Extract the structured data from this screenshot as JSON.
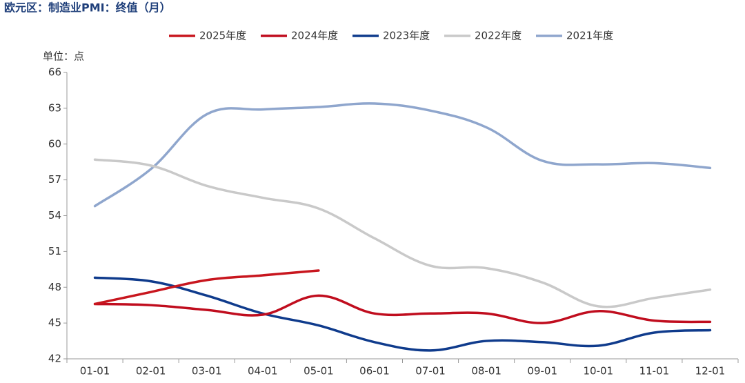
{
  "chart_data": {
    "type": "line",
    "title": "欧元区：制造业PMI：终值（月）",
    "y_axis_label": "单位：点",
    "categories": [
      "01-01",
      "02-01",
      "03-01",
      "04-01",
      "05-01",
      "06-01",
      "07-01",
      "08-01",
      "09-01",
      "10-01",
      "11-01",
      "12-01"
    ],
    "series": [
      {
        "name": "2025年度",
        "color": "#c8161e",
        "values": [
          46.6,
          47.6,
          48.6,
          49.0,
          49.4,
          null,
          null,
          null,
          null,
          null,
          null,
          null
        ]
      },
      {
        "name": "2024年度",
        "color": "#c00d1e",
        "values": [
          46.6,
          46.5,
          46.1,
          45.7,
          47.3,
          45.8,
          45.8,
          45.8,
          45.0,
          46.0,
          45.2,
          45.1
        ]
      },
      {
        "name": "2023年度",
        "color": "#0f3b8c",
        "values": [
          48.8,
          48.5,
          47.3,
          45.8,
          44.8,
          43.4,
          42.7,
          43.5,
          43.4,
          43.1,
          44.2,
          44.4
        ]
      },
      {
        "name": "2022年度",
        "color": "#c9c9c9",
        "values": [
          58.7,
          58.2,
          56.5,
          55.5,
          54.6,
          52.1,
          49.8,
          49.6,
          48.4,
          46.4,
          47.1,
          47.8
        ]
      },
      {
        "name": "2021年度",
        "color": "#8fa6cd",
        "values": [
          54.8,
          57.9,
          62.5,
          62.9,
          63.1,
          63.4,
          62.8,
          61.4,
          58.6,
          58.3,
          58.4,
          58.0
        ]
      }
    ],
    "ylim": [
      42,
      66
    ],
    "yticks": [
      42,
      45,
      48,
      51,
      54,
      57,
      60,
      63,
      66
    ],
    "legend": "top"
  }
}
